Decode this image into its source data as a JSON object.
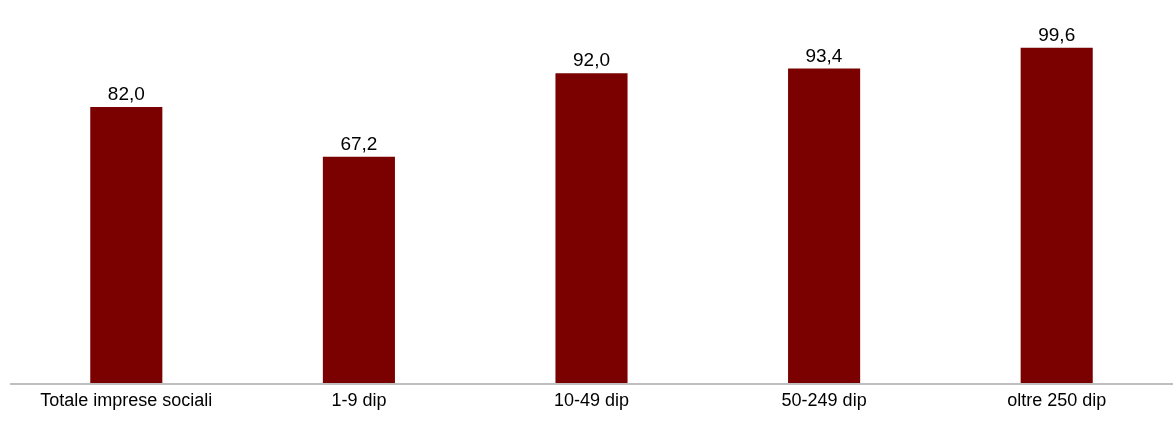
{
  "chart_data": {
    "type": "bar",
    "categories": [
      "Totale imprese sociali",
      "1-9 dip",
      "10-49 dip",
      "50-249 dip",
      "oltre 250 dip"
    ],
    "values": [
      82.0,
      67.2,
      92.0,
      93.4,
      99.6
    ],
    "value_labels": [
      "82,0",
      "67,2",
      "92,0",
      "93,4",
      "99,6"
    ],
    "color": "#7b0000",
    "legend": false,
    "tick_labels": "x"
  }
}
